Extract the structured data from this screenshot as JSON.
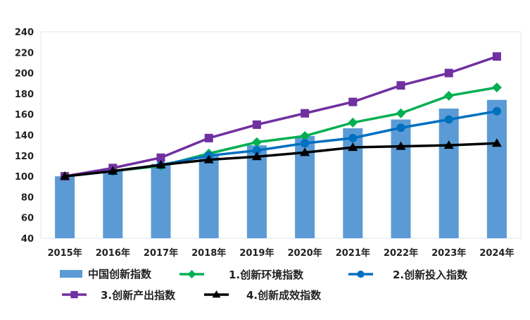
{
  "chart_data": {
    "type": "bar+line",
    "title": "",
    "xlabel": "",
    "ylabel": "",
    "ylim": [
      40,
      240
    ],
    "yticks": [
      40,
      60,
      80,
      100,
      120,
      140,
      160,
      180,
      200,
      220,
      240
    ],
    "grid": false,
    "legend_placement": "bottom",
    "categories": [
      "2015年",
      "2016年",
      "2017年",
      "2018年",
      "2019年",
      "2020年",
      "2021年",
      "2022年",
      "2023年",
      "2024年"
    ],
    "bar_series": {
      "name": "中国创新指数",
      "color": "#5B9BD5",
      "values": [
        100,
        105,
        112,
        121,
        130,
        139,
        146.5,
        155,
        165.6,
        174
      ]
    },
    "series": [
      {
        "name": "1.创新环境指数",
        "color": "#00B050",
        "marker": "diamond",
        "values": [
          100,
          105,
          110,
          122,
          133,
          139,
          152,
          161,
          178,
          186
        ]
      },
      {
        "name": "2.创新投入指数",
        "color": "#0070C0",
        "marker": "circle",
        "values": [
          100,
          105,
          111,
          120,
          125,
          132,
          137,
          147,
          155,
          163
        ]
      },
      {
        "name": "3.创新产出指数",
        "color": "#7030A0",
        "marker": "square",
        "values": [
          100,
          108,
          118,
          137,
          150,
          161,
          172,
          188,
          200,
          216
        ]
      },
      {
        "name": "4.创新成效指数",
        "color": "#000000",
        "marker": "triangle",
        "values": [
          100,
          105,
          111,
          116,
          119,
          123,
          128,
          129,
          130,
          132
        ]
      }
    ]
  }
}
